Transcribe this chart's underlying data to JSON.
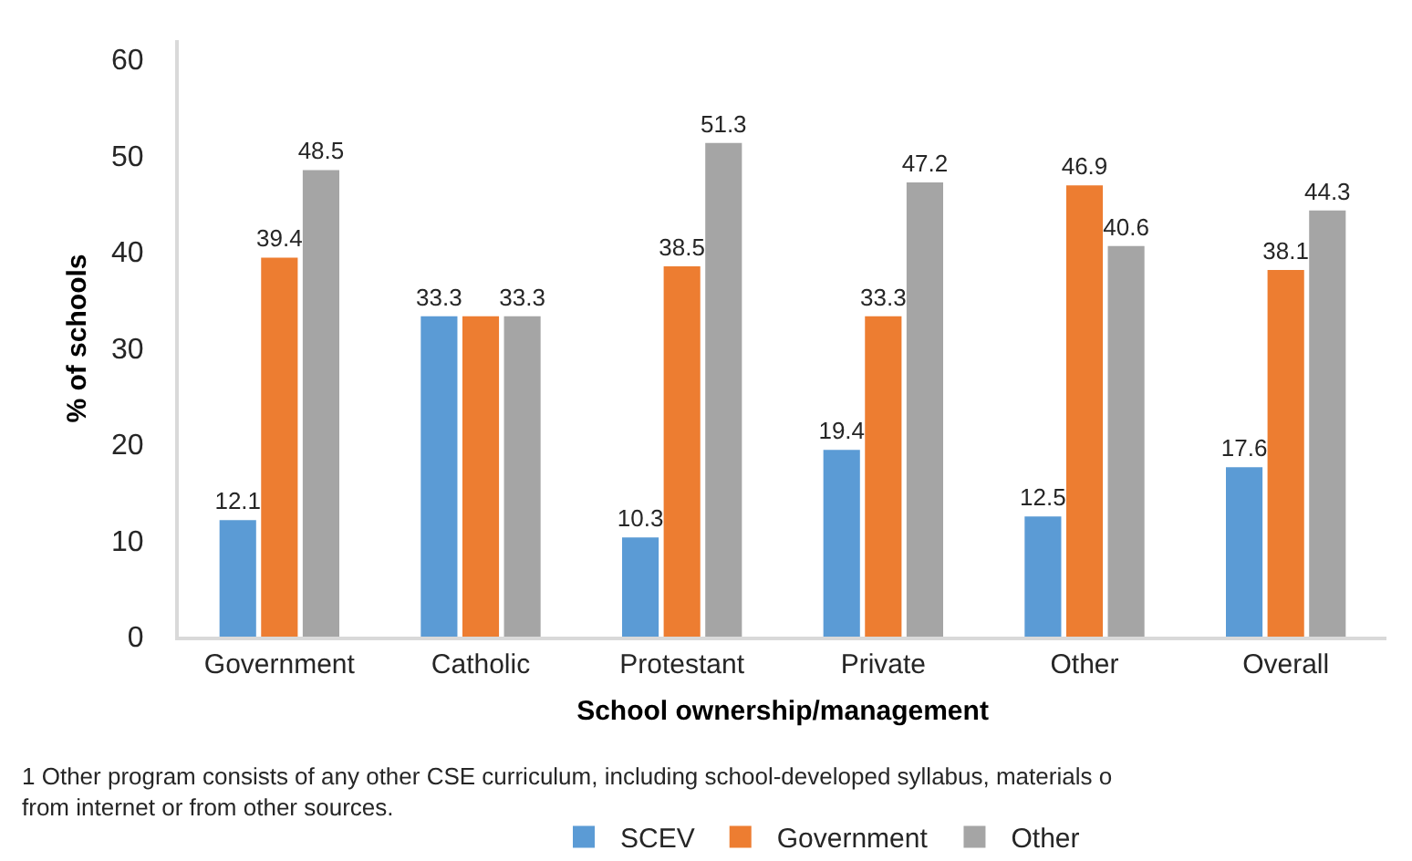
{
  "chart_data": {
    "type": "bar",
    "categories": [
      "Government",
      "Catholic",
      "Protestant",
      "Private",
      "Other",
      "Overall"
    ],
    "series": [
      {
        "name": "SCEV",
        "color": "#5b9bd5",
        "values": [
          12.1,
          33.3,
          10.3,
          19.4,
          12.5,
          17.6
        ],
        "value_labels": [
          "12.1",
          "33.3",
          "10.3",
          "19.4",
          "12.5",
          "17.6"
        ]
      },
      {
        "name": "Government",
        "color": "#ed7d31",
        "values": [
          39.4,
          33.3,
          38.5,
          33.3,
          46.9,
          38.1
        ],
        "value_labels": [
          "39.4",
          null,
          "38.5",
          "33.3",
          "46.9",
          "38.1"
        ]
      },
      {
        "name": "Other",
        "color": "#a5a5a5",
        "values": [
          48.5,
          33.3,
          51.3,
          47.2,
          40.6,
          44.3
        ],
        "value_labels": [
          "48.5",
          "33.3",
          "51.3",
          "47.2",
          "40.6",
          "44.3"
        ]
      }
    ],
    "xlabel": "School ownership/management",
    "ylabel": "% of schools",
    "ylim": [
      0,
      62
    ],
    "yticks": [
      0,
      10,
      20,
      30,
      40,
      50,
      60
    ],
    "grid": false,
    "legend": "bottom",
    "annotations": [
      "1 Other program consists of any other CSE curriculum, including school-developed syllabus, materials o from internet or from other sources."
    ]
  }
}
